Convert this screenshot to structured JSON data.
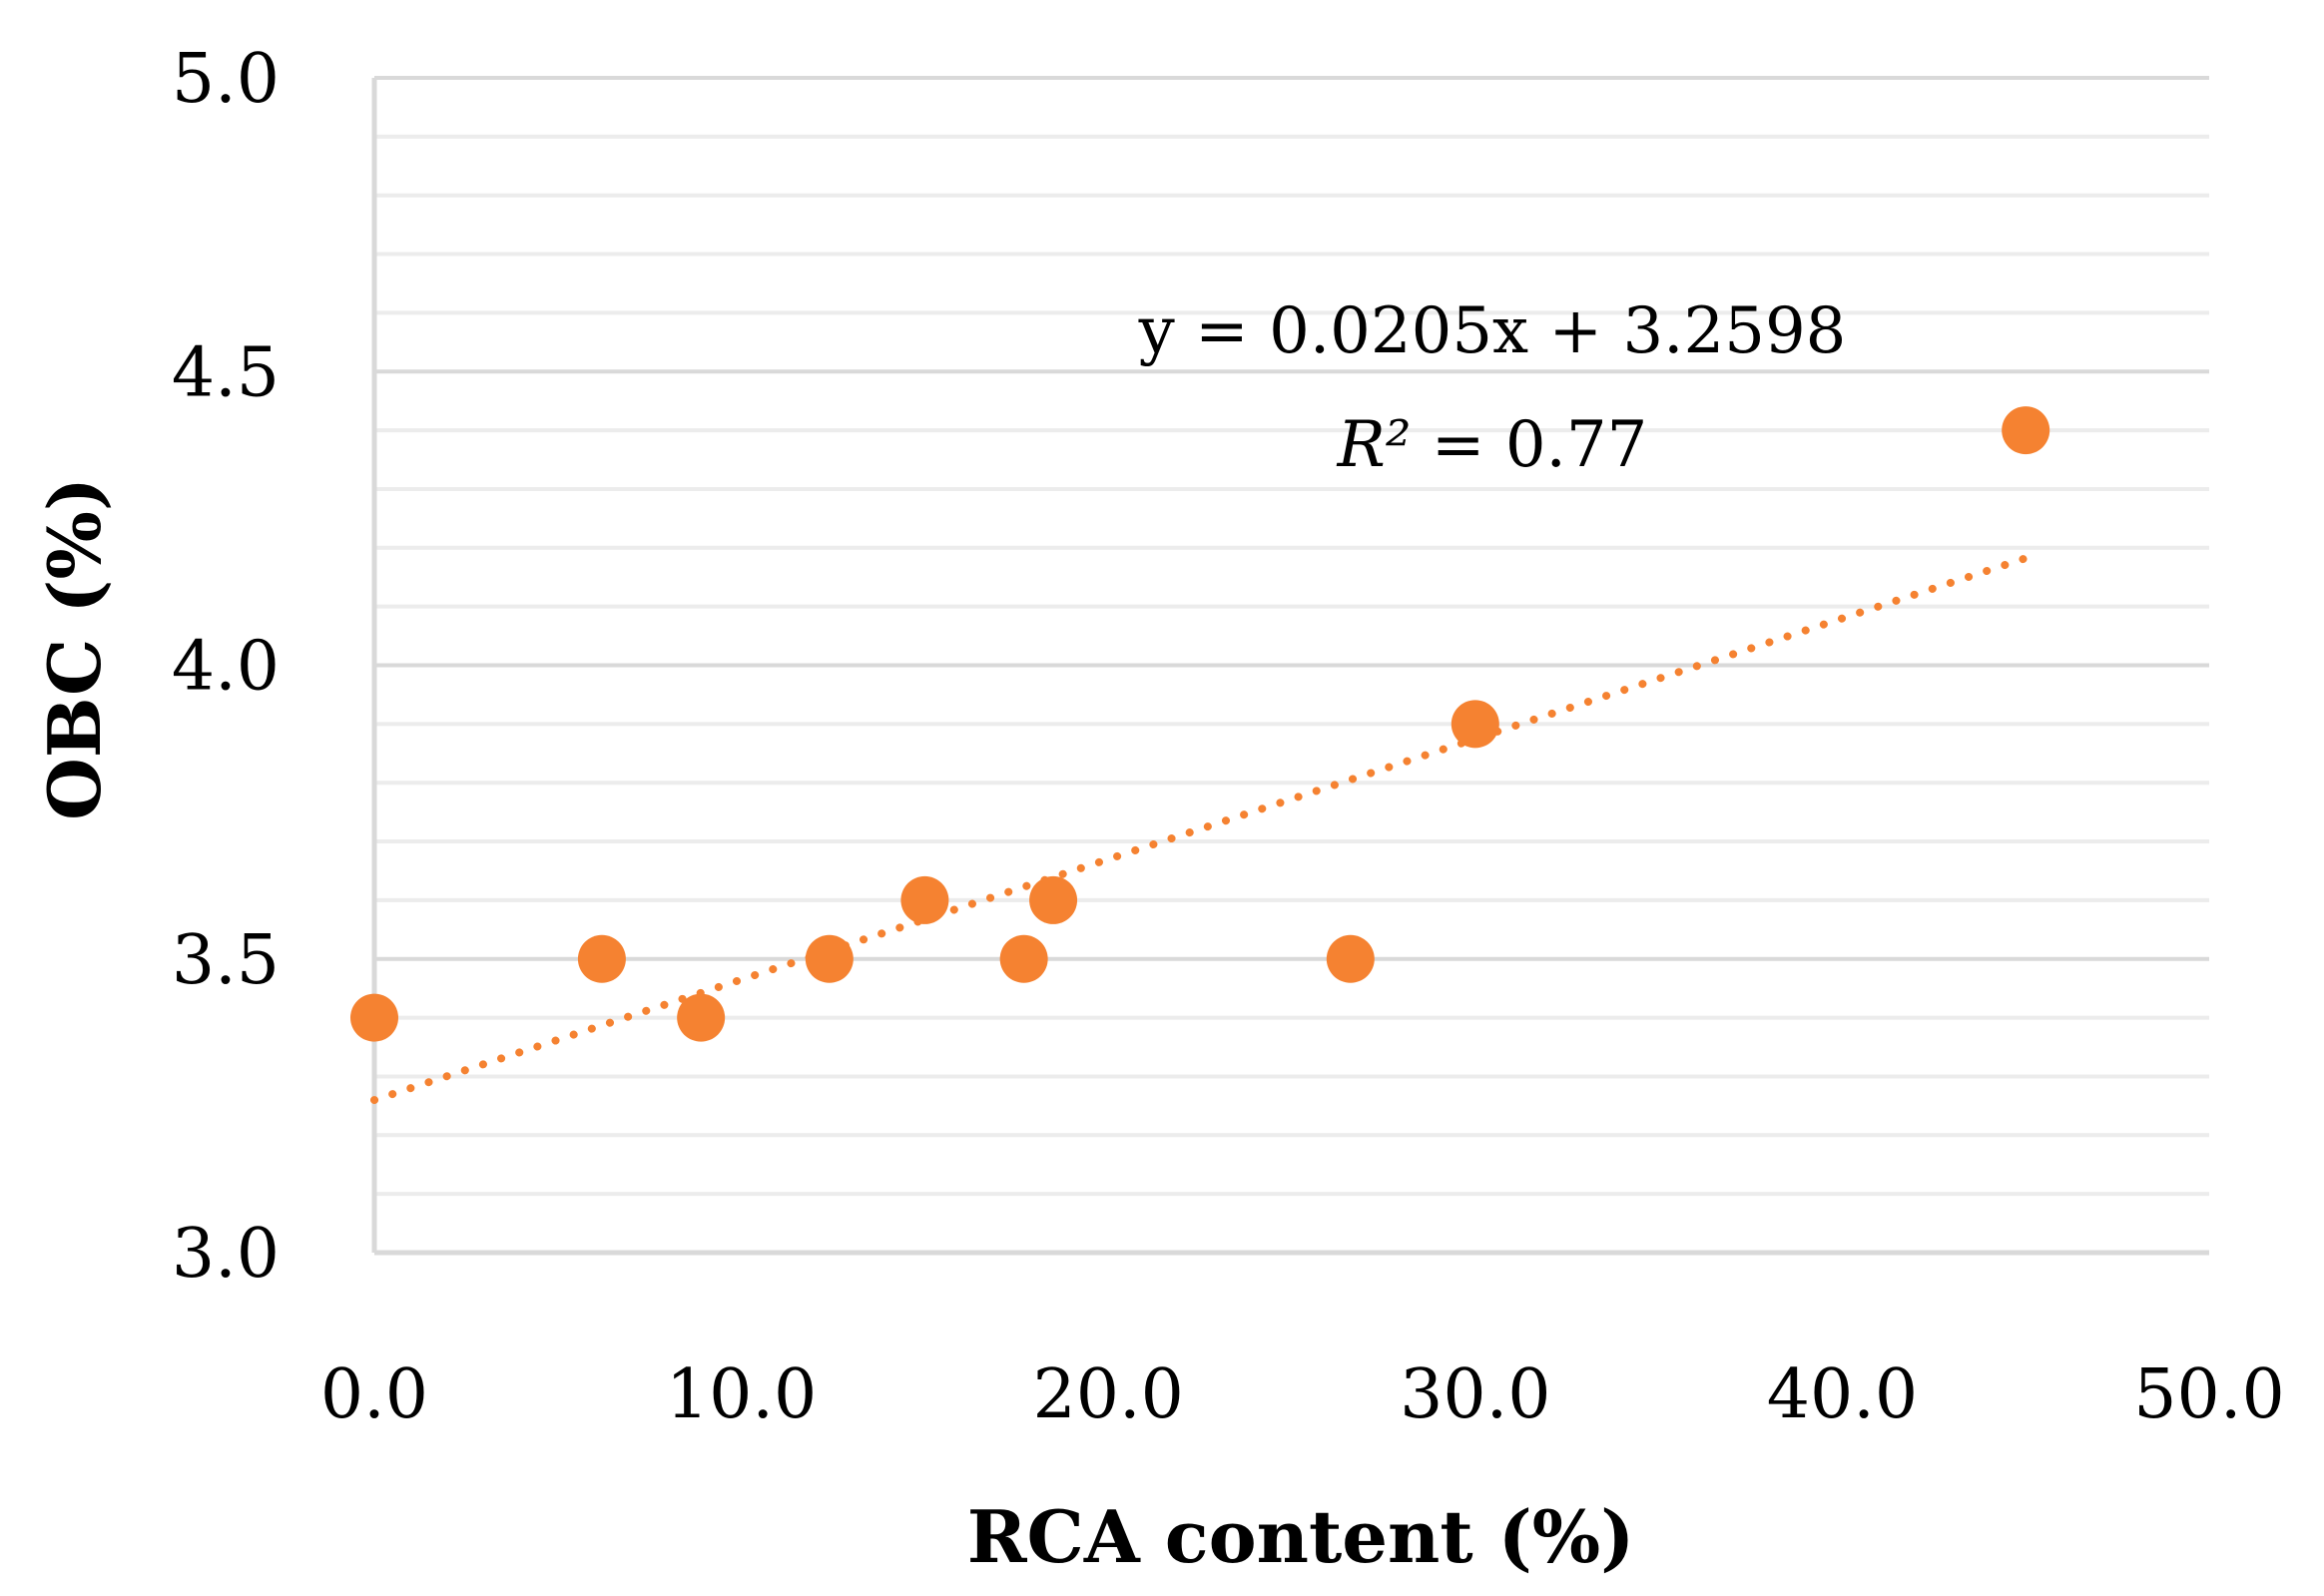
{
  "chart_data": {
    "type": "scatter",
    "title": "",
    "xlabel": "RCA content (%)",
    "ylabel": "OBC (%)",
    "xlim": [
      0,
      50
    ],
    "ylim": [
      3.0,
      5.0
    ],
    "x_ticks": [
      0,
      10,
      20,
      30,
      40,
      50
    ],
    "x_tick_labels": [
      "0.0",
      "10.0",
      "20.0",
      "30.0",
      "40.0",
      "50.0"
    ],
    "y_ticks": [
      3.0,
      3.5,
      4.0,
      4.5,
      5.0
    ],
    "y_tick_labels": [
      "3.0",
      "3.5",
      "4.0",
      "4.5",
      "5.0"
    ],
    "minor_y_step": 0.1,
    "grid": true,
    "series": [
      {
        "name": "OBC",
        "color": "#f58231",
        "points": [
          {
            "x": 0.0,
            "y": 3.4
          },
          {
            "x": 6.2,
            "y": 3.5
          },
          {
            "x": 8.9,
            "y": 3.4
          },
          {
            "x": 12.4,
            "y": 3.5
          },
          {
            "x": 15.0,
            "y": 3.6
          },
          {
            "x": 17.7,
            "y": 3.5
          },
          {
            "x": 18.5,
            "y": 3.6
          },
          {
            "x": 26.6,
            "y": 3.5
          },
          {
            "x": 30.0,
            "y": 3.9
          },
          {
            "x": 45.0,
            "y": 4.4
          }
        ]
      }
    ],
    "trendline": {
      "type": "linear",
      "slope": 0.0205,
      "intercept": 3.2598,
      "x_range": [
        0,
        45
      ],
      "style": "dotted",
      "color": "#f58231"
    },
    "annotations": {
      "equation": "y = 0.0205x + 3.2598",
      "r2_symbol": "R²",
      "r2_value": " = 0.77"
    }
  }
}
